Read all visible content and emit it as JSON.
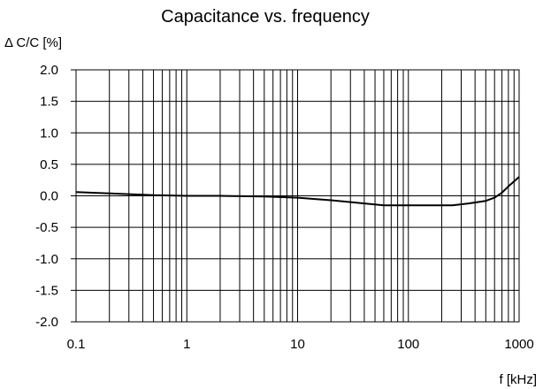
{
  "chart_data": {
    "type": "line",
    "title": "Capacitance vs. frequency",
    "ylabel": "Δ C/C [%]",
    "xlabel": "f [kHz]",
    "x_scale": "log",
    "xlim": [
      0.1,
      1000
    ],
    "ylim": [
      -2.0,
      2.0
    ],
    "x_ticks": [
      0.1,
      1,
      10,
      100,
      1000
    ],
    "x_tick_labels": [
      "0.1",
      "1",
      "10",
      "100",
      "1000"
    ],
    "y_ticks": [
      2.0,
      1.5,
      1.0,
      0.5,
      0.0,
      -0.5,
      -1.0,
      -1.5,
      -2.0
    ],
    "y_tick_labels": [
      "2.0",
      "1.5",
      "1.0",
      "0.5",
      "0.0",
      "-0.5",
      "-1.0",
      "-1.5",
      "-2.0"
    ],
    "grid": true,
    "line_color": "#000000",
    "series": [
      {
        "x": [
          0.1,
          0.2,
          0.5,
          1,
          2,
          5,
          10,
          20,
          40,
          60,
          100,
          200,
          250,
          350,
          500,
          600,
          700,
          800,
          1000
        ],
        "y": [
          0.06,
          0.04,
          0.01,
          0.0,
          0.0,
          -0.01,
          -0.03,
          -0.07,
          -0.12,
          -0.15,
          -0.15,
          -0.15,
          -0.15,
          -0.12,
          -0.08,
          -0.03,
          0.05,
          0.15,
          0.3
        ]
      }
    ]
  }
}
